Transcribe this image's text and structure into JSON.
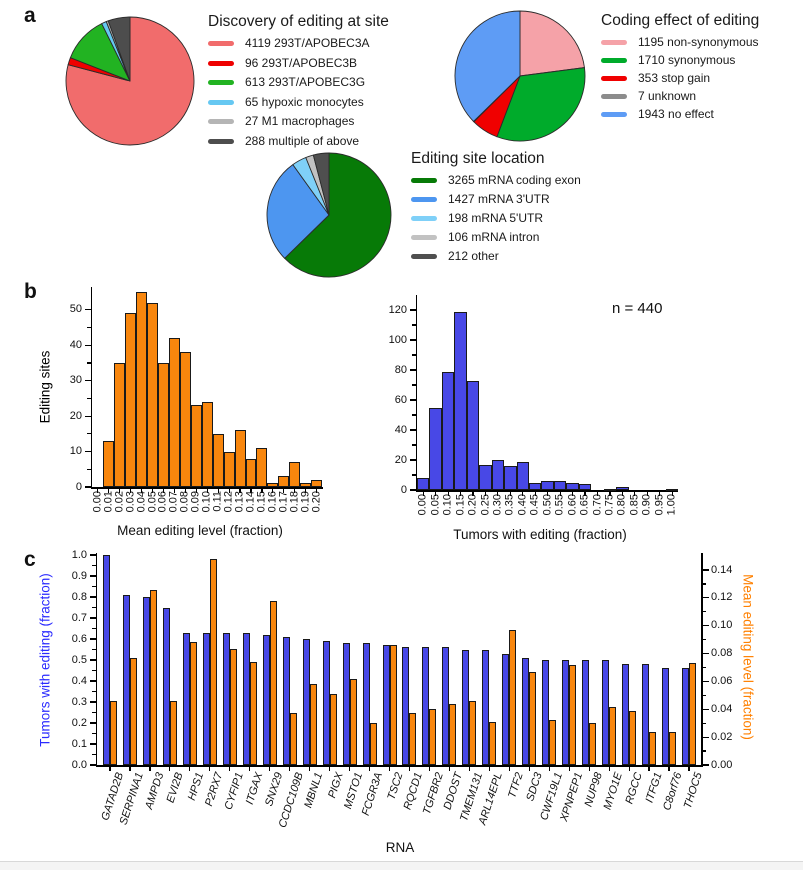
{
  "panels": {
    "a": "a",
    "b": "b",
    "c": "c"
  },
  "chart_data": [
    {
      "id": "pie-discovery",
      "type": "pie",
      "title": "Discovery of editing at site",
      "labels": [
        "4119 293T/APOBEC3A",
        "96 293T/APOBEC3B",
        "613 293T/APOBEC3G",
        "65 hypoxic monocytes",
        "27 M1 macrophages",
        "288 multiple of above"
      ],
      "values": [
        4119,
        96,
        613,
        65,
        27,
        288
      ],
      "colors": [
        "#F16C6C",
        "#EE0000",
        "#22B322",
        "#66C8F2",
        "#B5B5B5",
        "#4D4D4D"
      ]
    },
    {
      "id": "pie-coding-effect",
      "type": "pie",
      "title": "Coding effect of editing",
      "labels": [
        "1195 non-synonymous",
        "1710 synonymous",
        "353 stop gain",
        "7 unknown",
        "1943 no effect"
      ],
      "values": [
        1195,
        1710,
        353,
        7,
        1943
      ],
      "colors": [
        "#F5A2A8",
        "#00AB2B",
        "#F00000",
        "#8C8C8C",
        "#5E9CF5"
      ]
    },
    {
      "id": "pie-location",
      "type": "pie",
      "title": "Editing site location",
      "labels": [
        "3265 mRNA coding exon",
        "1427 mRNA 3'UTR",
        "198 mRNA 5'UTR",
        "106 mRNA intron",
        "212 other"
      ],
      "values": [
        3265,
        1427,
        198,
        106,
        212
      ],
      "colors": [
        "#077A07",
        "#4D96F0",
        "#7FD0F8",
        "#C2C2C2",
        "#4F4F4F"
      ]
    },
    {
      "id": "hist-mean-editing-level",
      "type": "bar",
      "color": "#F8860D",
      "xlabel": "Mean editing level (fraction)",
      "ylabel": "Editing sites",
      "x_ticks": [
        "0.00",
        "0.01",
        "0.02",
        "0.03",
        "0.04",
        "0.05",
        "0.06",
        "0.07",
        "0.08",
        "0.09",
        "0.10",
        "0.11",
        "0.12",
        "0.13",
        "0.14",
        "0.15",
        "0.16",
        "0.17",
        "0.18",
        "0.19",
        "0.20"
      ],
      "values": [
        0,
        13,
        35,
        49,
        55,
        52,
        35,
        42,
        38,
        23,
        24,
        15,
        10,
        16,
        8,
        11,
        1,
        3,
        7,
        1,
        2
      ],
      "y_ticks": [
        0,
        10,
        20,
        30,
        40,
        50
      ],
      "ylim": [
        0,
        57
      ]
    },
    {
      "id": "hist-tumors-with-editing",
      "type": "bar",
      "color": "#4848E6",
      "xlabel": "Tumors with editing (fraction)",
      "annotation": "n = 440",
      "x_ticks": [
        "0.00",
        "0.05",
        "0.10",
        "0.15",
        "0.20",
        "0.25",
        "0.30",
        "0.35",
        "0.40",
        "0.45",
        "0.50",
        "0.55",
        "0.60",
        "0.65",
        "0.70",
        "0.75",
        "0.80",
        "0.85",
        "0.90",
        "0.95",
        "1.00"
      ],
      "values": [
        8,
        55,
        79,
        119,
        73,
        17,
        20,
        16,
        19,
        5,
        6,
        6,
        5,
        4,
        0,
        1,
        2,
        0,
        0,
        0,
        1
      ],
      "y_ticks": [
        0,
        20,
        40,
        60,
        80,
        100,
        120
      ],
      "ylim": [
        0,
        131
      ]
    },
    {
      "id": "tumors-and-editing-by-rna",
      "type": "bar",
      "xlabel": "RNA",
      "categories": [
        "GATAD2B",
        "SERPINA1",
        "AMPD3",
        "EVI2B",
        "HPS1",
        "P2RX7",
        "CYFIP1",
        "ITGAX",
        "SNX29",
        "CCDC109B",
        "MBNL1",
        "PIGX",
        "MSTO1",
        "FCGR3A",
        "TSC2",
        "RQCD1",
        "TGFBR2",
        "DDOST",
        "TMEM131",
        "ARL14EPL",
        "TTF2",
        "SDC3",
        "CWF19L1",
        "XPNPEP1",
        "NUP98",
        "MYO1E",
        "RGCC",
        "ITFG1",
        "C8orf76",
        "THOC5"
      ],
      "series": [
        {
          "name": "Tumors with editing (fraction)",
          "axis": "left",
          "color": "#4848E6",
          "values": [
            1.0,
            0.81,
            0.8,
            0.75,
            0.63,
            0.63,
            0.63,
            0.63,
            0.62,
            0.61,
            0.6,
            0.59,
            0.58,
            0.58,
            0.57,
            0.56,
            0.56,
            0.56,
            0.55,
            0.55,
            0.53,
            0.51,
            0.5,
            0.5,
            0.5,
            0.5,
            0.48,
            0.48,
            0.46,
            0.46
          ]
        },
        {
          "name": "Mean editing level (fraction)",
          "axis": "right",
          "color": "#F8860D",
          "values": [
            0.046,
            0.077,
            0.126,
            0.046,
            0.088,
            0.148,
            0.083,
            0.074,
            0.118,
            0.037,
            0.058,
            0.051,
            0.062,
            0.03,
            0.086,
            0.037,
            0.04,
            0.044,
            0.046,
            0.031,
            0.097,
            0.067,
            0.032,
            0.072,
            0.03,
            0.042,
            0.039,
            0.024,
            0.024,
            0.073
          ]
        }
      ],
      "left_axis": {
        "label": "Tumors with editing (fraction)",
        "color": "#2B2BFF",
        "ticks": [
          "0.0",
          "0.1",
          "0.2",
          "0.3",
          "0.4",
          "0.5",
          "0.6",
          "0.7",
          "0.8",
          "0.9",
          "1.0"
        ],
        "lim": [
          0,
          1.01
        ]
      },
      "right_axis": {
        "label": "Mean editing level (fraction)",
        "color": "#FF8000",
        "ticks": [
          "0.00",
          "0.02",
          "0.04",
          "0.06",
          "0.08",
          "0.10",
          "0.12",
          "0.14"
        ],
        "lim": [
          0,
          0.152
        ]
      }
    }
  ]
}
